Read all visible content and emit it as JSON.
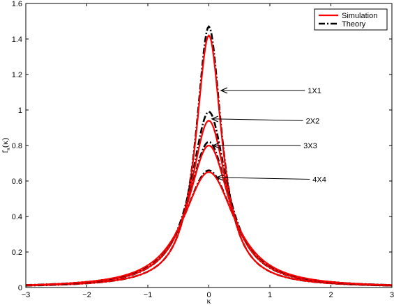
{
  "chart_data": {
    "type": "line",
    "title": "",
    "xlabel": "κ",
    "ylabel_main": "f",
    "ylabel_sub": "κ",
    "ylabel_tail": "(κ)",
    "xlim": [
      -3,
      3
    ],
    "ylim": [
      0,
      1.6
    ],
    "xticks": [
      -3,
      -2,
      -1,
      0,
      1,
      2,
      3
    ],
    "xtick_labels": [
      "−3",
      "−2",
      "−1",
      "0",
      "1",
      "2",
      "3"
    ],
    "yticks": [
      0,
      0.2,
      0.4,
      0.6,
      0.8,
      1,
      1.2,
      1.4,
      1.6
    ],
    "ytick_labels": [
      "0",
      "0.2",
      "0.4",
      "0.6",
      "0.8",
      "1",
      "1.2",
      "1.4",
      "1.6"
    ],
    "grid": false,
    "legend": {
      "placement": "top-right",
      "entries": [
        {
          "name": "Simulation",
          "color": "#ff0000",
          "style": "solid"
        },
        {
          "name": "Theory",
          "color": "#000000",
          "style": "dashdot"
        }
      ]
    },
    "curve_families": [
      {
        "label": "1X1",
        "theory_peak": 1.47,
        "simulation_peak": 1.42,
        "width": 0.255,
        "tail_power": 1.0
      },
      {
        "label": "2X2",
        "theory_peak": 0.99,
        "simulation_peak": 0.94,
        "width": 0.36,
        "tail_power": 1.0
      },
      {
        "label": "3X3",
        "theory_peak": 0.82,
        "simulation_peak": 0.8,
        "width": 0.44,
        "tail_power": 1.1
      },
      {
        "label": "4X4",
        "theory_peak": 0.66,
        "simulation_peak": 0.65,
        "width": 0.55,
        "tail_power": 1.15
      }
    ],
    "annotations": [
      {
        "label": "1X1",
        "text_x": 1.62,
        "text_y": 1.11,
        "arrow_to_x": 0.2,
        "arrow_to_y": 1.11
      },
      {
        "label": "2X2",
        "text_x": 1.59,
        "text_y": 0.94,
        "arrow_to_x": 0.05,
        "arrow_to_y": 0.95
      },
      {
        "label": "3X3",
        "text_x": 1.55,
        "text_y": 0.8,
        "arrow_to_x": 0.07,
        "arrow_to_y": 0.8
      },
      {
        "label": "4X4",
        "text_x": 1.7,
        "text_y": 0.61,
        "arrow_to_x": 0.13,
        "arrow_to_y": 0.62
      }
    ],
    "colors": {
      "simulation": "#ff0000",
      "theory": "#000000",
      "axes": "#000000",
      "background": "#ffffff"
    }
  }
}
